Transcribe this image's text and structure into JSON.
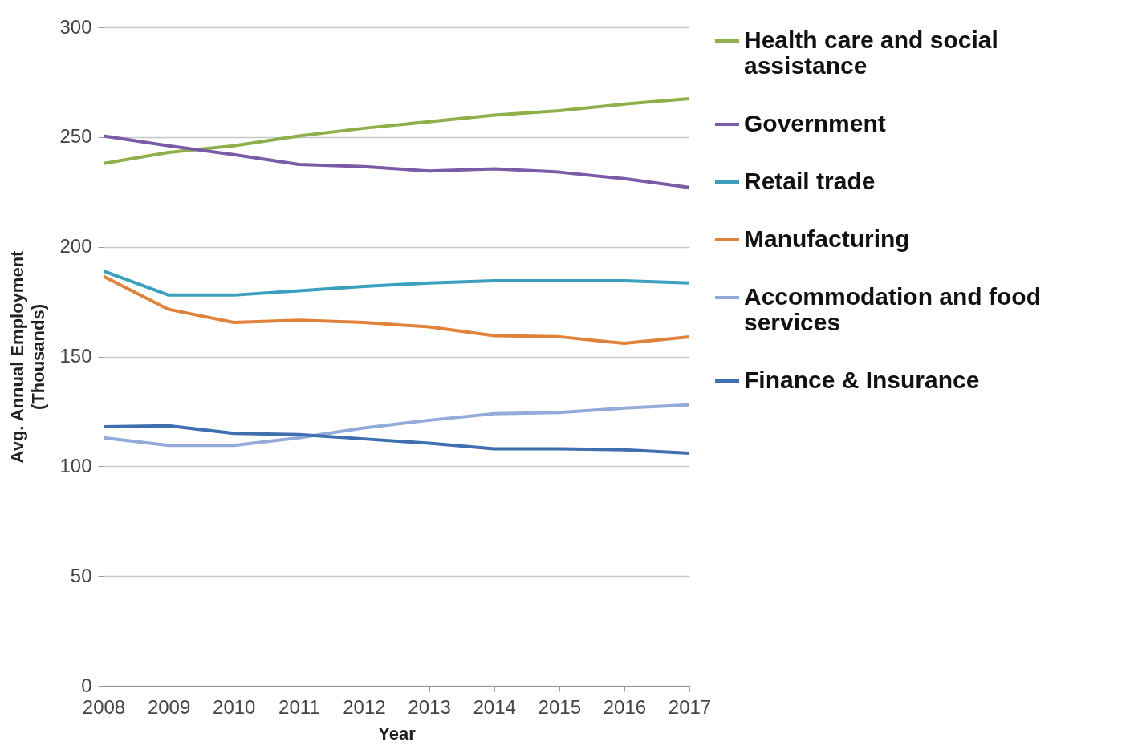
{
  "chart_data": {
    "type": "line",
    "xlabel": "Year",
    "ylabel": "Avg. Annual Employment (Thousands)",
    "x": [
      2008,
      2009,
      2010,
      2011,
      2012,
      2013,
      2014,
      2015,
      2016,
      2017
    ],
    "xlim": [
      2008,
      2017
    ],
    "xticks": [
      2008,
      2009,
      2010,
      2011,
      2012,
      2013,
      2014,
      2015,
      2016,
      2017
    ],
    "ylim": [
      0,
      300
    ],
    "yticks": [
      0,
      50,
      100,
      150,
      200,
      250,
      300
    ],
    "grid": "y",
    "legend": "right",
    "series": [
      {
        "name": "Health care and social assistance",
        "color": "#8db04a",
        "values": [
          238,
          243,
          246,
          250.5,
          254,
          257,
          260,
          262,
          265,
          267.5
        ]
      },
      {
        "name": "Government",
        "color": "#7b5aa6",
        "values": [
          250.5,
          246,
          242,
          237.5,
          236.5,
          234.5,
          235.5,
          234,
          231,
          227
        ]
      },
      {
        "name": "Retail trade",
        "color": "#3ba0bd",
        "values": [
          189,
          178,
          178,
          180,
          182,
          183.5,
          184.5,
          184.5,
          184.5,
          183.5
        ]
      },
      {
        "name": "Manufacturing",
        "color": "#e0823a",
        "values": [
          186.5,
          171.5,
          165.5,
          166.5,
          165.5,
          163.5,
          159.5,
          159,
          156,
          159
        ]
      },
      {
        "name": "Accommodation and food services",
        "color": "#93abd8",
        "values": [
          113,
          109.5,
          109.5,
          113,
          117.5,
          121,
          124,
          124.5,
          126.5,
          128
        ]
      },
      {
        "name": "Finance & Insurance",
        "color": "#3f6fae",
        "values": [
          118,
          118.5,
          115,
          114.5,
          112.5,
          110.5,
          108,
          108,
          107.5,
          106
        ]
      }
    ]
  }
}
